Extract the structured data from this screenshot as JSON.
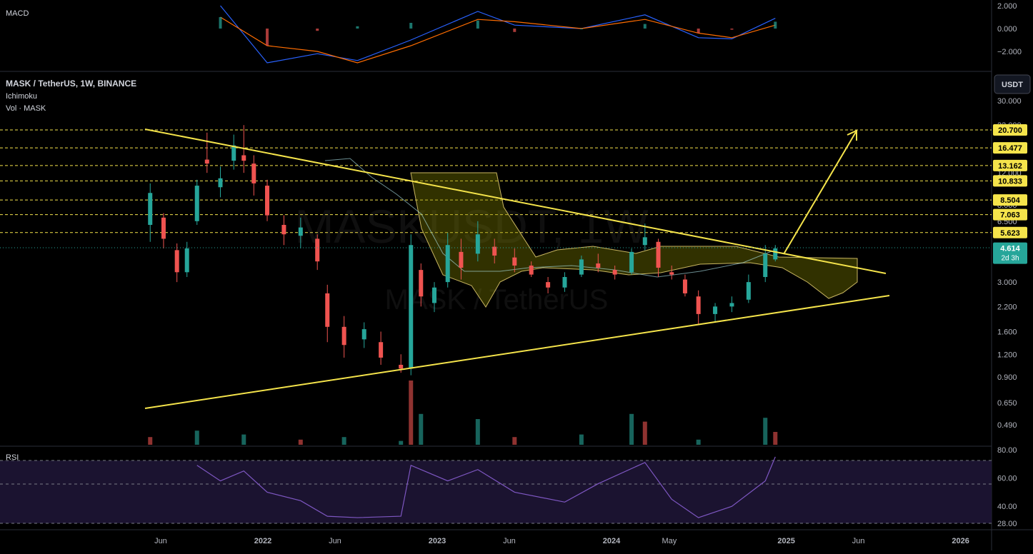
{
  "header": {
    "macd_label": "MACD",
    "symbol_line": "MASK / TetherUS, 1W, BINANCE",
    "ichimoku_label": "Ichimoku",
    "volume_label": "Vol · MASK",
    "rsi_label": "RSI",
    "currency_button": "USDT",
    "watermark_main": "MASKUSDT, 1W",
    "watermark_sub": "MASK / TetherUS"
  },
  "colors": {
    "background": "#000000",
    "up": "#26a69a",
    "down": "#ef5350",
    "trendline": "#f5e44b",
    "cloud": "#808000",
    "rsi": "#7e57c2",
    "macd": "#2962ff",
    "signal": "#ff6d00",
    "current_price_tag": "#26a69a"
  },
  "chart_data": [
    {
      "type": "candlestick",
      "title": "MASK / TetherUS, 1W, BINANCE",
      "y_scale": "log",
      "y_ticks": [
        "30.000",
        "22.000",
        "16.000",
        "12.000",
        "8.000",
        "6.500",
        "4.614",
        "3.000",
        "2.200",
        "1.600",
        "1.200",
        "0.900",
        "0.650",
        "0.490"
      ],
      "x_ticks": [
        "Jun",
        "2022",
        "Jun",
        "2023",
        "Jun",
        "2024",
        "May",
        "2025",
        "Jun",
        "2026"
      ],
      "current_price": "4.614",
      "countdown": "2d 3h",
      "levels": [
        "20.700",
        "16.477",
        "13.162",
        "10.833",
        "8.504",
        "7.063",
        "5.623"
      ],
      "series": [
        {
          "date": "2021-05-10",
          "o": 6.2,
          "h": 10.5,
          "l": 5.0,
          "c": 9.3
        },
        {
          "date": "2021-06-07",
          "o": 6.8,
          "h": 7.2,
          "l": 4.6,
          "c": 5.2
        },
        {
          "date": "2021-07-05",
          "o": 4.5,
          "h": 4.9,
          "l": 3.0,
          "c": 3.4
        },
        {
          "date": "2021-07-26",
          "o": 3.4,
          "h": 5.0,
          "l": 3.2,
          "c": 4.6
        },
        {
          "date": "2021-08-16",
          "o": 6.5,
          "h": 11.0,
          "l": 6.2,
          "c": 10.2
        },
        {
          "date": "2021-09-06",
          "o": 14.2,
          "h": 20.0,
          "l": 12.0,
          "c": 13.5
        },
        {
          "date": "2021-10-04",
          "o": 10.0,
          "h": 13.0,
          "l": 8.8,
          "c": 11.2
        },
        {
          "date": "2021-11-01",
          "o": 14.0,
          "h": 19.5,
          "l": 12.5,
          "c": 17.0
        },
        {
          "date": "2021-11-22",
          "o": 15.0,
          "h": 22.0,
          "l": 12.0,
          "c": 14.0
        },
        {
          "date": "2021-12-13",
          "o": 13.5,
          "h": 15.0,
          "l": 9.0,
          "c": 10.5
        },
        {
          "date": "2022-01-10",
          "o": 10.2,
          "h": 11.0,
          "l": 6.5,
          "c": 7.0
        },
        {
          "date": "2022-02-14",
          "o": 6.2,
          "h": 7.0,
          "l": 4.8,
          "c": 5.5
        },
        {
          "date": "2022-03-21",
          "o": 5.4,
          "h": 6.8,
          "l": 4.6,
          "c": 6.0
        },
        {
          "date": "2022-04-25",
          "o": 5.2,
          "h": 5.5,
          "l": 3.5,
          "c": 3.9
        },
        {
          "date": "2022-05-16",
          "o": 2.6,
          "h": 2.9,
          "l": 1.4,
          "c": 1.7
        },
        {
          "date": "2022-06-20",
          "o": 1.7,
          "h": 1.95,
          "l": 1.15,
          "c": 1.35
        },
        {
          "date": "2022-08-01",
          "o": 1.45,
          "h": 1.8,
          "l": 1.3,
          "c": 1.65
        },
        {
          "date": "2022-09-05",
          "o": 1.4,
          "h": 1.6,
          "l": 1.05,
          "c": 1.15
        },
        {
          "date": "2022-10-17",
          "o": 1.05,
          "h": 1.2,
          "l": 0.95,
          "c": 1.0
        },
        {
          "date": "2022-11-07",
          "o": 1.0,
          "h": 5.5,
          "l": 0.92,
          "c": 4.8
        },
        {
          "date": "2022-11-28",
          "o": 3.5,
          "h": 3.8,
          "l": 2.2,
          "c": 2.5
        },
        {
          "date": "2022-12-26",
          "o": 2.3,
          "h": 3.0,
          "l": 2.05,
          "c": 2.8
        },
        {
          "date": "2023-01-23",
          "o": 3.0,
          "h": 5.6,
          "l": 2.8,
          "c": 4.8
        },
        {
          "date": "2023-02-20",
          "o": 4.4,
          "h": 5.2,
          "l": 3.1,
          "c": 3.6
        },
        {
          "date": "2023-03-27",
          "o": 4.3,
          "h": 6.5,
          "l": 3.9,
          "c": 5.5
        },
        {
          "date": "2023-05-01",
          "o": 4.7,
          "h": 5.2,
          "l": 3.8,
          "c": 4.2
        },
        {
          "date": "2023-06-12",
          "o": 4.1,
          "h": 4.6,
          "l": 3.4,
          "c": 3.7
        },
        {
          "date": "2023-07-17",
          "o": 3.7,
          "h": 3.9,
          "l": 3.2,
          "c": 3.3
        },
        {
          "date": "2023-08-21",
          "o": 3.0,
          "h": 3.2,
          "l": 2.6,
          "c": 2.8
        },
        {
          "date": "2023-09-25",
          "o": 2.8,
          "h": 3.4,
          "l": 2.65,
          "c": 3.2
        },
        {
          "date": "2023-10-30",
          "o": 3.3,
          "h": 4.2,
          "l": 3.2,
          "c": 4.0
        },
        {
          "date": "2023-12-04",
          "o": 3.8,
          "h": 4.3,
          "l": 3.4,
          "c": 3.6
        },
        {
          "date": "2024-01-08",
          "o": 3.5,
          "h": 3.7,
          "l": 3.1,
          "c": 3.3
        },
        {
          "date": "2024-02-12",
          "o": 3.4,
          "h": 4.6,
          "l": 3.3,
          "c": 4.4
        },
        {
          "date": "2024-03-11",
          "o": 4.8,
          "h": 6.3,
          "l": 4.5,
          "c": 5.3
        },
        {
          "date": "2024-04-08",
          "o": 5.0,
          "h": 5.2,
          "l": 3.2,
          "c": 3.6
        },
        {
          "date": "2024-05-06",
          "o": 3.4,
          "h": 3.7,
          "l": 3.1,
          "c": 3.3
        },
        {
          "date": "2024-06-03",
          "o": 3.1,
          "h": 3.3,
          "l": 2.5,
          "c": 2.6
        },
        {
          "date": "2024-07-01",
          "o": 2.5,
          "h": 2.7,
          "l": 1.75,
          "c": 2.0
        },
        {
          "date": "2024-08-05",
          "o": 2.0,
          "h": 2.3,
          "l": 1.8,
          "c": 2.2
        },
        {
          "date": "2024-09-09",
          "o": 2.2,
          "h": 2.5,
          "l": 2.05,
          "c": 2.3
        },
        {
          "date": "2024-10-14",
          "o": 2.4,
          "h": 3.3,
          "l": 2.3,
          "c": 3.0
        },
        {
          "date": "2024-11-18",
          "o": 3.2,
          "h": 4.8,
          "l": 3.0,
          "c": 4.3
        },
        {
          "date": "2024-12-09",
          "o": 4.0,
          "h": 4.8,
          "l": 3.9,
          "c": 4.6
        }
      ]
    },
    {
      "type": "bar",
      "title": "Vol · MASK",
      "series": [
        {
          "date": "2021-05-10",
          "v": 12
        },
        {
          "date": "2021-08-16",
          "v": 22
        },
        {
          "date": "2021-11-22",
          "v": 16
        },
        {
          "date": "2022-03-21",
          "v": 8
        },
        {
          "date": "2022-06-20",
          "v": 12
        },
        {
          "date": "2022-10-17",
          "v": 6
        },
        {
          "date": "2022-11-07",
          "v": 100
        },
        {
          "date": "2022-11-28",
          "v": 48
        },
        {
          "date": "2023-03-27",
          "v": 40
        },
        {
          "date": "2023-06-12",
          "v": 12
        },
        {
          "date": "2023-10-30",
          "v": 16
        },
        {
          "date": "2024-02-12",
          "v": 48
        },
        {
          "date": "2024-03-11",
          "v": 36
        },
        {
          "date": "2024-07-01",
          "v": 8
        },
        {
          "date": "2024-11-18",
          "v": 42
        },
        {
          "date": "2024-12-09",
          "v": 20
        }
      ]
    },
    {
      "type": "line",
      "title": "RSI",
      "y_ticks": [
        "80.00",
        "60.00",
        "40.00",
        "28.00"
      ],
      "series": [
        {
          "date": "2021-08-16",
          "v": 69
        },
        {
          "date": "2021-10-04",
          "v": 58
        },
        {
          "date": "2021-11-22",
          "v": 65
        },
        {
          "date": "2022-01-10",
          "v": 50
        },
        {
          "date": "2022-03-21",
          "v": 44
        },
        {
          "date": "2022-05-16",
          "v": 33
        },
        {
          "date": "2022-07-18",
          "v": 32
        },
        {
          "date": "2022-10-17",
          "v": 33
        },
        {
          "date": "2022-11-07",
          "v": 69
        },
        {
          "date": "2023-01-23",
          "v": 58
        },
        {
          "date": "2023-03-27",
          "v": 66
        },
        {
          "date": "2023-06-12",
          "v": 50
        },
        {
          "date": "2023-09-25",
          "v": 43
        },
        {
          "date": "2023-12-04",
          "v": 56
        },
        {
          "date": "2024-03-11",
          "v": 71
        },
        {
          "date": "2024-05-06",
          "v": 45
        },
        {
          "date": "2024-07-01",
          "v": 32
        },
        {
          "date": "2024-09-09",
          "v": 40
        },
        {
          "date": "2024-11-18",
          "v": 58
        },
        {
          "date": "2024-12-09",
          "v": 75
        }
      ]
    },
    {
      "type": "line",
      "title": "MACD",
      "y_ticks": [
        "2.000",
        "0.000",
        "−2.000"
      ],
      "series": [
        {
          "date": "2021-10-04",
          "macd": 2.0,
          "signal": 1.0
        },
        {
          "date": "2022-01-10",
          "macd": -3.0,
          "signal": -1.5
        },
        {
          "date": "2022-04-25",
          "macd": -2.2,
          "signal": -2.0
        },
        {
          "date": "2022-07-18",
          "macd": -2.8,
          "signal": -3.0
        },
        {
          "date": "2022-11-07",
          "macd": -1.0,
          "signal": -1.5
        },
        {
          "date": "2023-03-27",
          "macd": 1.5,
          "signal": 0.8
        },
        {
          "date": "2023-06-12",
          "macd": 0.3,
          "signal": 0.6
        },
        {
          "date": "2023-10-30",
          "macd": 0.0,
          "signal": 0.0
        },
        {
          "date": "2024-03-11",
          "macd": 1.2,
          "signal": 0.8
        },
        {
          "date": "2024-07-01",
          "macd": -0.8,
          "signal": -0.4
        },
        {
          "date": "2024-09-09",
          "macd": -0.9,
          "signal": -0.8
        },
        {
          "date": "2024-12-09",
          "macd": 0.9,
          "signal": 0.3
        }
      ]
    }
  ]
}
